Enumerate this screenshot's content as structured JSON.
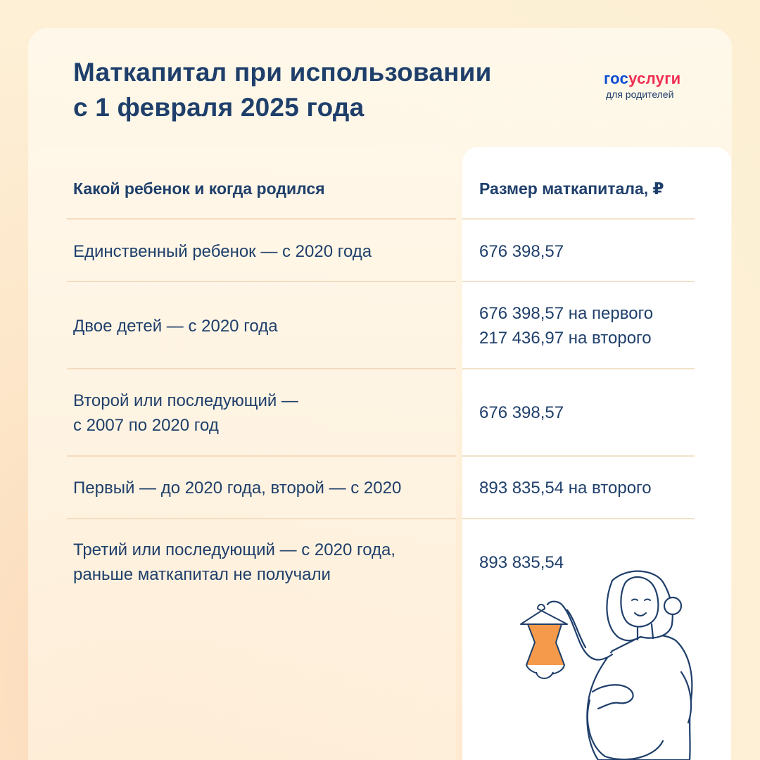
{
  "title": {
    "line1": "Маткапитал при использовании",
    "line2": "с 1 февраля 2025 года"
  },
  "logo": {
    "gos": "гос",
    "uslugi": "услуги",
    "subtitle": "для родителей"
  },
  "table": {
    "headers": {
      "child": "Какой ребенок и когда родился",
      "amount": "Размер маткапитала,  ₽"
    },
    "rows": [
      {
        "child": [
          "Единственный ребенок — с 2020 года"
        ],
        "amount": [
          "676 398,57"
        ]
      },
      {
        "child": [
          "Двое детей — с 2020 года"
        ],
        "amount": [
          "676 398,57 на первого",
          "217 436,97 на второго"
        ]
      },
      {
        "child": [
          "Второй или последующий —",
          "с 2007 по 2020 год"
        ],
        "amount": [
          "676 398,57"
        ]
      },
      {
        "child": [
          "Первый — до 2020 года, второй — с 2020"
        ],
        "amount": [
          "893 835,54 на второго"
        ]
      },
      {
        "child": [
          "Третий или последующий — с 2020 года,",
          "раньше маткапитал не получали"
        ],
        "amount": [
          "893 835,54"
        ]
      }
    ]
  },
  "colors": {
    "text": "#1f3f6b",
    "logo_blue": "#0d4cd3",
    "logo_red": "#ee2f53",
    "divider": "#f3dcc0",
    "dress_fill": "#f59a4a"
  },
  "illustration": {
    "icon": "pregnant-woman-holding-baby-dress-illustration"
  }
}
